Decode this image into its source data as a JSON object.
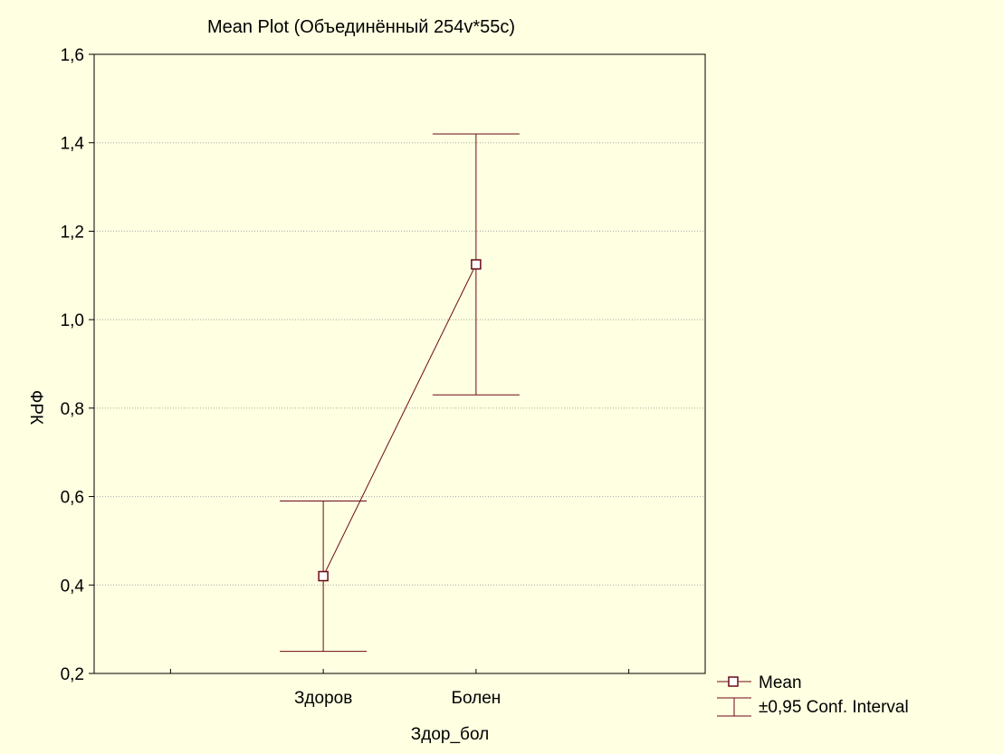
{
  "chart_data": {
    "type": "line",
    "title": "Mean Plot (Объединённый 254v*55c)",
    "xlabel": "Здор_бол",
    "ylabel": "ФРК",
    "categories": [
      "Здоров",
      "Болен"
    ],
    "series": [
      {
        "name": "Mean",
        "values": [
          0.42,
          1.125
        ],
        "ci_lower": [
          0.25,
          0.83
        ],
        "ci_upper": [
          0.59,
          1.42
        ]
      }
    ],
    "ylim": [
      0.2,
      1.6
    ],
    "yticks": [
      "0,2",
      "0,4",
      "0,6",
      "0,8",
      "1,0",
      "1,2",
      "1,4",
      "1,6"
    ],
    "ytick_values": [
      0.2,
      0.4,
      0.6,
      0.8,
      1.0,
      1.2,
      1.4,
      1.6
    ],
    "grid": true,
    "legend_position": "bottom-right",
    "legend": [
      {
        "label": "Mean",
        "marker": "square-line"
      },
      {
        "label": "±0,95 Conf. Interval",
        "marker": "error-bar"
      }
    ],
    "colors": {
      "series": "#6b0a18",
      "background": "#ffffe1",
      "grid": "#a8a8a8"
    }
  }
}
